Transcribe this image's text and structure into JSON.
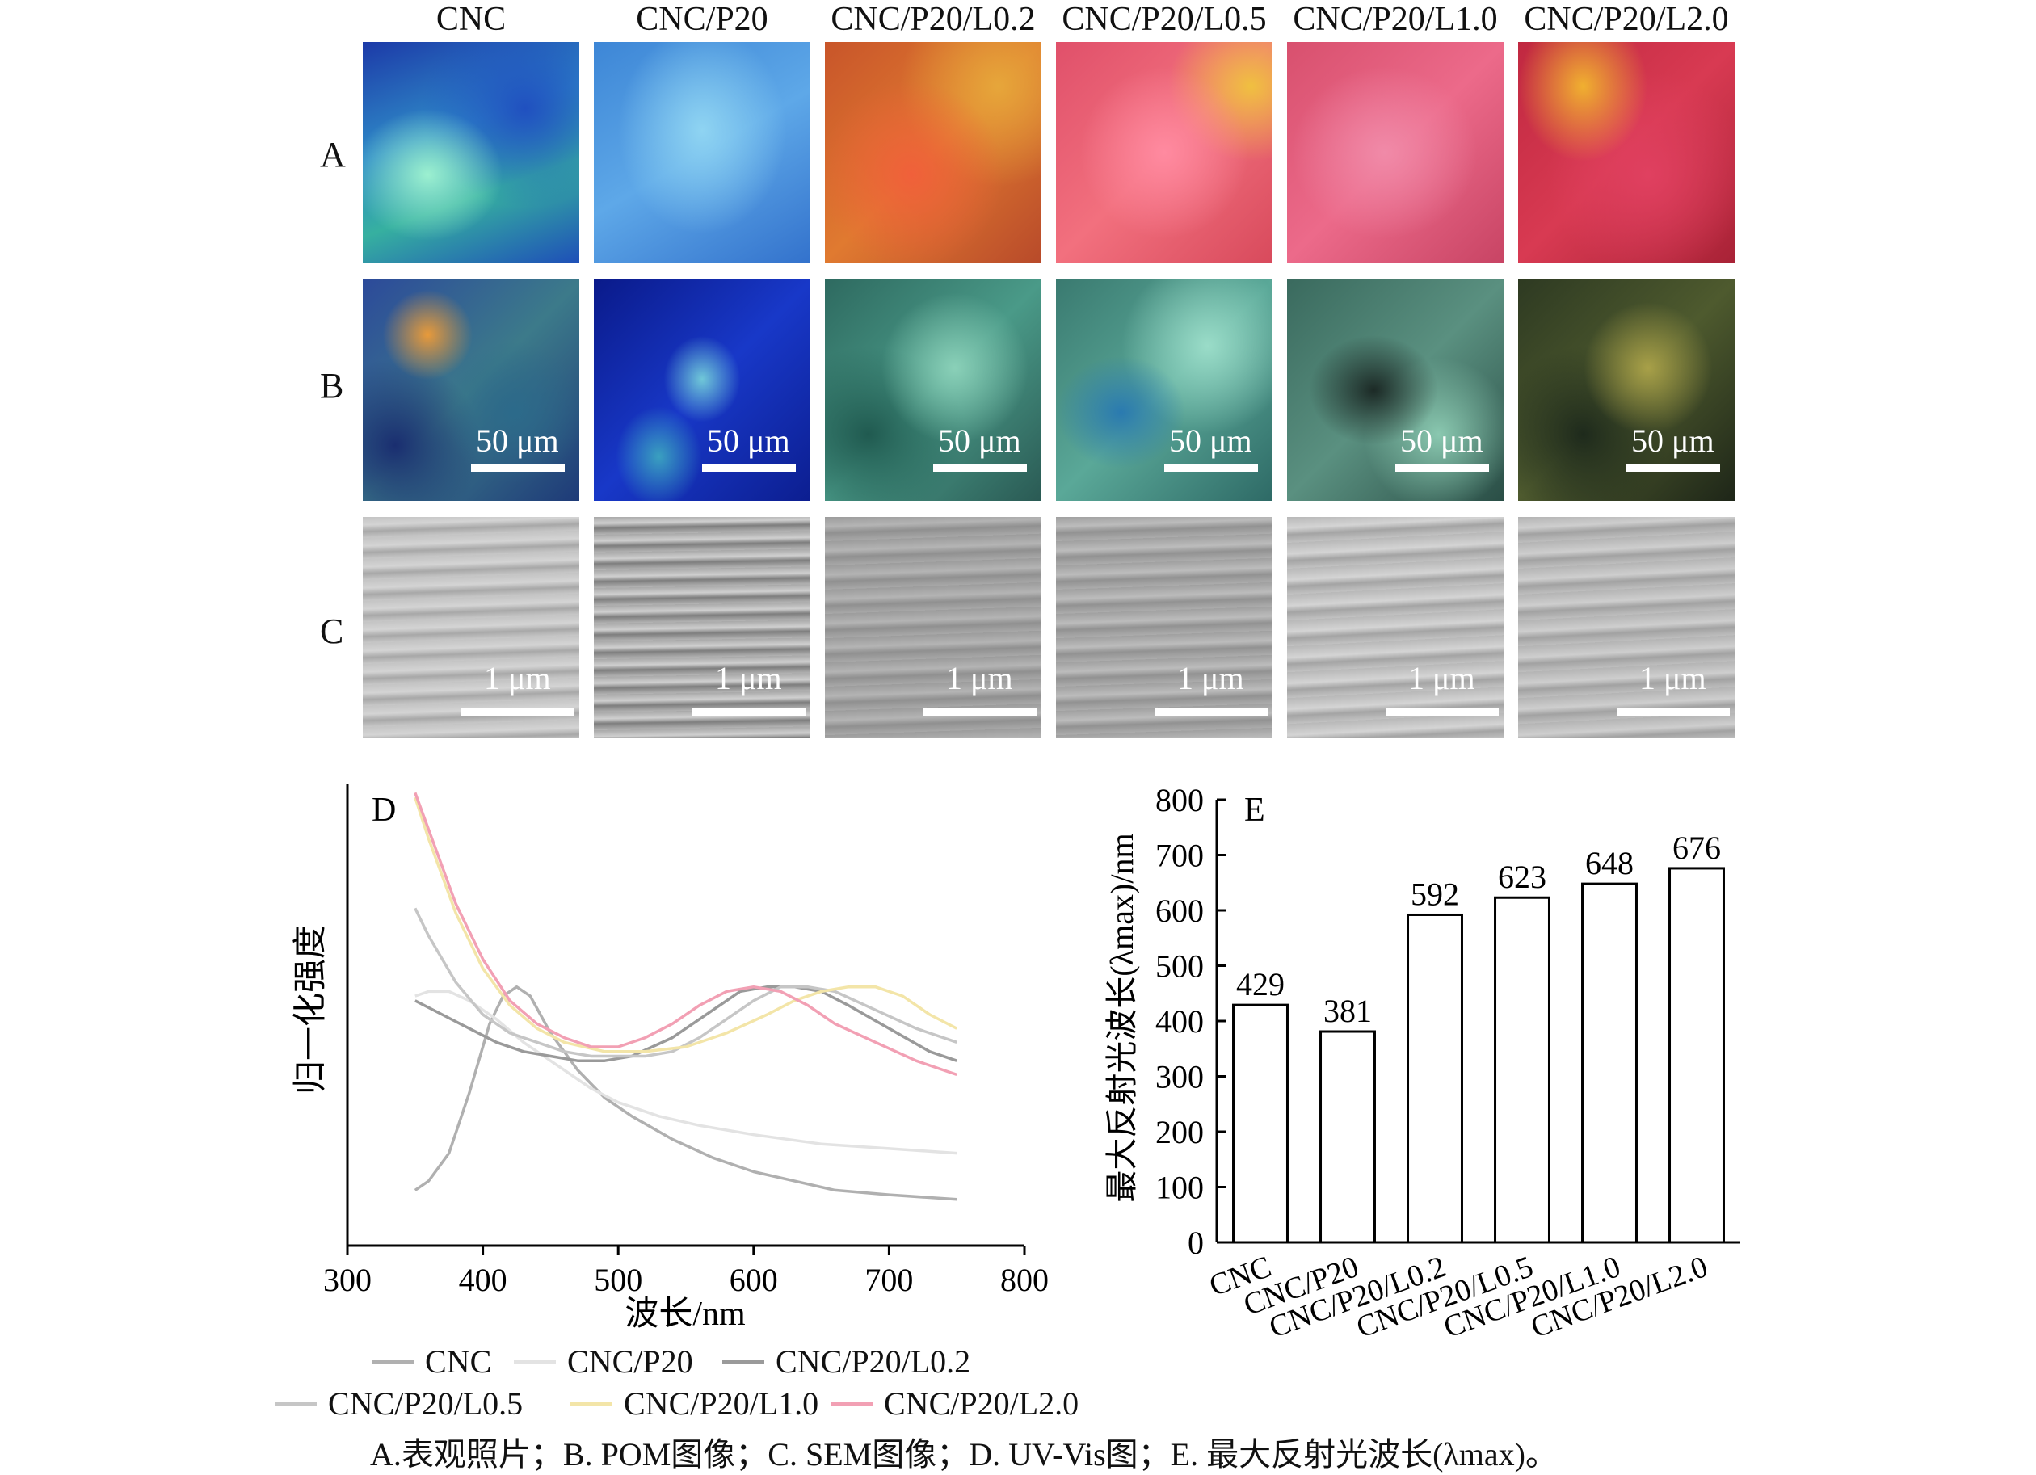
{
  "columns": [
    "CNC",
    "CNC/P20",
    "CNC/P20/L0.2",
    "CNC/P20/L0.5",
    "CNC/P20/L1.0",
    "CNC/P20/L2.0"
  ],
  "rows": [
    "A",
    "B",
    "C"
  ],
  "scale_B": "50 μm",
  "scale_C": "1 μm",
  "panel_D": {
    "label": "D",
    "ylabel": "归一化强度",
    "xlabel": "波长/nm",
    "xticks": [
      "300",
      "400",
      "500",
      "600",
      "700",
      "800"
    ]
  },
  "panel_E": {
    "label": "E",
    "ylabel": "最大反射光波长(λmax)/nm",
    "yticks": [
      "0",
      "100",
      "200",
      "300",
      "400",
      "500",
      "600",
      "700",
      "800"
    ]
  },
  "chart_data": [
    {
      "type": "line",
      "xlabel": "波长/nm",
      "ylabel": "归一化强度",
      "xlim": [
        300,
        800
      ],
      "series": [
        {
          "name": "CNC",
          "color": "#b0b0b0",
          "x": [
            350,
            360,
            375,
            390,
            405,
            415,
            425,
            435,
            450,
            470,
            490,
            510,
            540,
            570,
            600,
            630,
            660,
            700,
            750
          ],
          "y": [
            0.12,
            0.14,
            0.2,
            0.33,
            0.48,
            0.54,
            0.56,
            0.54,
            0.46,
            0.38,
            0.32,
            0.28,
            0.23,
            0.19,
            0.16,
            0.14,
            0.12,
            0.11,
            0.1
          ]
        },
        {
          "name": "CNC/P20",
          "color": "#e3e3e3",
          "x": [
            350,
            360,
            375,
            390,
            410,
            430,
            450,
            480,
            500,
            530,
            560,
            600,
            650,
            700,
            750
          ],
          "y": [
            0.54,
            0.55,
            0.55,
            0.53,
            0.49,
            0.44,
            0.4,
            0.34,
            0.31,
            0.28,
            0.26,
            0.24,
            0.22,
            0.21,
            0.2
          ]
        },
        {
          "name": "CNC/P20/L0.2",
          "color": "#9a9a9a",
          "x": [
            350,
            370,
            390,
            410,
            430,
            450,
            470,
            490,
            510,
            540,
            570,
            590,
            610,
            630,
            650,
            670,
            700,
            730,
            750
          ],
          "y": [
            0.53,
            0.5,
            0.47,
            0.44,
            0.42,
            0.41,
            0.4,
            0.4,
            0.41,
            0.45,
            0.51,
            0.55,
            0.56,
            0.56,
            0.55,
            0.52,
            0.47,
            0.42,
            0.4
          ]
        },
        {
          "name": "CNC/P20/L0.5",
          "color": "#c6c6c6",
          "x": [
            350,
            360,
            380,
            400,
            420,
            440,
            460,
            480,
            500,
            520,
            540,
            560,
            580,
            600,
            620,
            640,
            660,
            690,
            720,
            750
          ],
          "y": [
            0.73,
            0.67,
            0.57,
            0.5,
            0.46,
            0.44,
            0.42,
            0.41,
            0.41,
            0.41,
            0.42,
            0.45,
            0.49,
            0.53,
            0.56,
            0.56,
            0.55,
            0.51,
            0.47,
            0.44
          ]
        },
        {
          "name": "CNC/P20/L1.0",
          "color": "#f3e5a8",
          "x": [
            350,
            360,
            380,
            400,
            420,
            440,
            460,
            490,
            520,
            550,
            580,
            610,
            630,
            650,
            670,
            690,
            710,
            730,
            750
          ],
          "y": [
            0.97,
            0.88,
            0.72,
            0.6,
            0.52,
            0.47,
            0.44,
            0.42,
            0.42,
            0.43,
            0.46,
            0.5,
            0.53,
            0.55,
            0.56,
            0.56,
            0.54,
            0.5,
            0.47
          ]
        },
        {
          "name": "CNC/P20/L2.0",
          "color": "#f2a0b4",
          "x": [
            350,
            360,
            380,
            400,
            420,
            440,
            460,
            480,
            500,
            520,
            540,
            560,
            580,
            600,
            620,
            640,
            660,
            690,
            720,
            750
          ],
          "y": [
            0.98,
            0.9,
            0.74,
            0.62,
            0.53,
            0.48,
            0.45,
            0.43,
            0.43,
            0.45,
            0.48,
            0.52,
            0.55,
            0.56,
            0.55,
            0.52,
            0.48,
            0.44,
            0.4,
            0.37
          ]
        }
      ]
    },
    {
      "type": "bar",
      "categories": [
        "CNC",
        "CNC/P20",
        "CNC/P20/L0.2",
        "CNC/P20/L0.5",
        "CNC/P20/L1.0",
        "CNC/P20/L2.0"
      ],
      "values": [
        429,
        381,
        592,
        623,
        648,
        676
      ],
      "ylabel": "最大反射光波长(λmax)/nm",
      "ylim": [
        0,
        800
      ]
    }
  ],
  "caption": "A.表观照片；B. POM图像；C. SEM图像；D. UV-Vis图；E. 最大反射光波长(λmax)。"
}
